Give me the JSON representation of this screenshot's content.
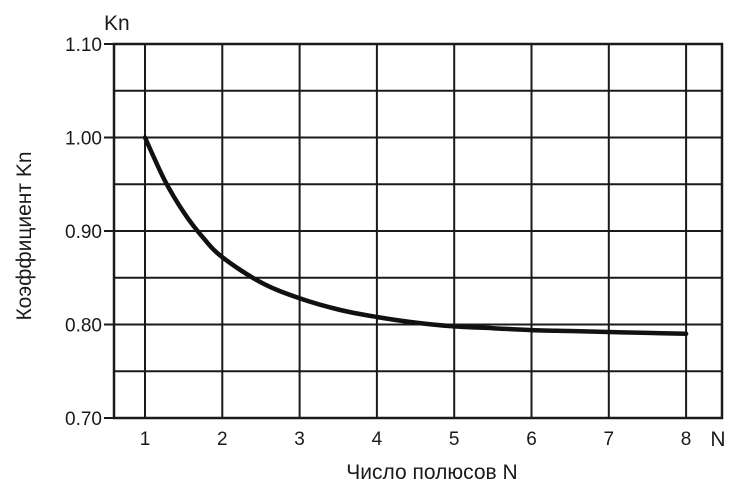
{
  "chart_data": {
    "type": "line",
    "title": "",
    "xlabel": "Число полюсов N",
    "ylabel": "Коэффициент Kn",
    "x_axis_symbol": "N",
    "y_axis_symbol": "Kn",
    "x_ticks": [
      "1",
      "2",
      "3",
      "4",
      "5",
      "6",
      "7",
      "8"
    ],
    "y_ticks": [
      "0.70",
      "0.80",
      "0.90",
      "1.00",
      "1.10"
    ],
    "xlim": [
      0.6,
      9.0
    ],
    "ylim": [
      0.7,
      1.1
    ],
    "grid": true,
    "series": [
      {
        "x": [
          1.0,
          1.25,
          1.5,
          1.75,
          2.0,
          2.5,
          3.0,
          3.5,
          4.0,
          4.5,
          5.0,
          5.5,
          6.0,
          6.5,
          7.0,
          7.5,
          8.0
        ],
        "y": [
          1.0,
          0.955,
          0.92,
          0.893,
          0.872,
          0.845,
          0.828,
          0.816,
          0.808,
          0.802,
          0.798,
          0.796,
          0.794,
          0.793,
          0.792,
          0.791,
          0.79
        ],
        "color": "#111111"
      }
    ]
  }
}
